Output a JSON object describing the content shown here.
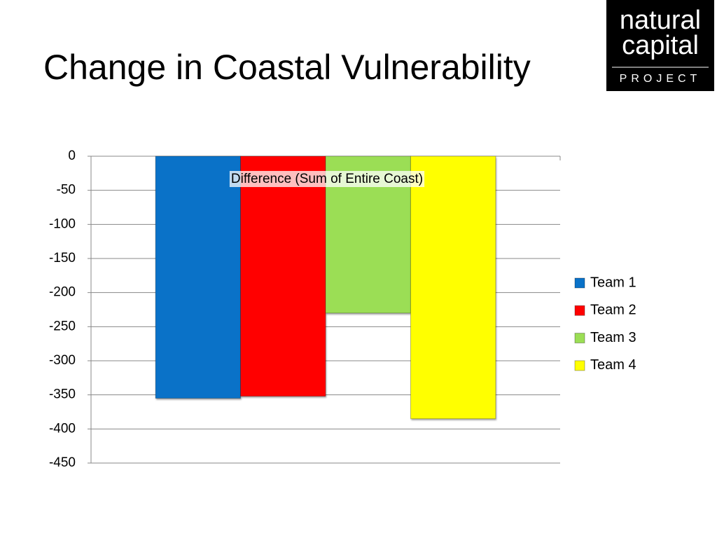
{
  "slide": {
    "title": "Change in Coastal Vulnerability",
    "logo": [
      "natural",
      "capital",
      "PROJECT"
    ]
  },
  "chart_data": {
    "type": "bar",
    "title": "Difference (Sum of Entire Coast)",
    "categories": [
      null
    ],
    "series": [
      {
        "name": "Team 1",
        "color": "#0a72c8",
        "values": [
          -355
        ]
      },
      {
        "name": "Team 2",
        "color": "#ff0000",
        "values": [
          -352
        ]
      },
      {
        "name": "Team 3",
        "color": "#9bde55",
        "values": [
          -230
        ]
      },
      {
        "name": "Team 4",
        "color": "#ffff00",
        "values": [
          -385
        ]
      }
    ],
    "ylim": [
      -450,
      0
    ],
    "yticks": [
      0,
      -50,
      -100,
      -150,
      -200,
      -250,
      -300,
      -350,
      -400,
      -450
    ],
    "grid": true,
    "legend": "right"
  }
}
